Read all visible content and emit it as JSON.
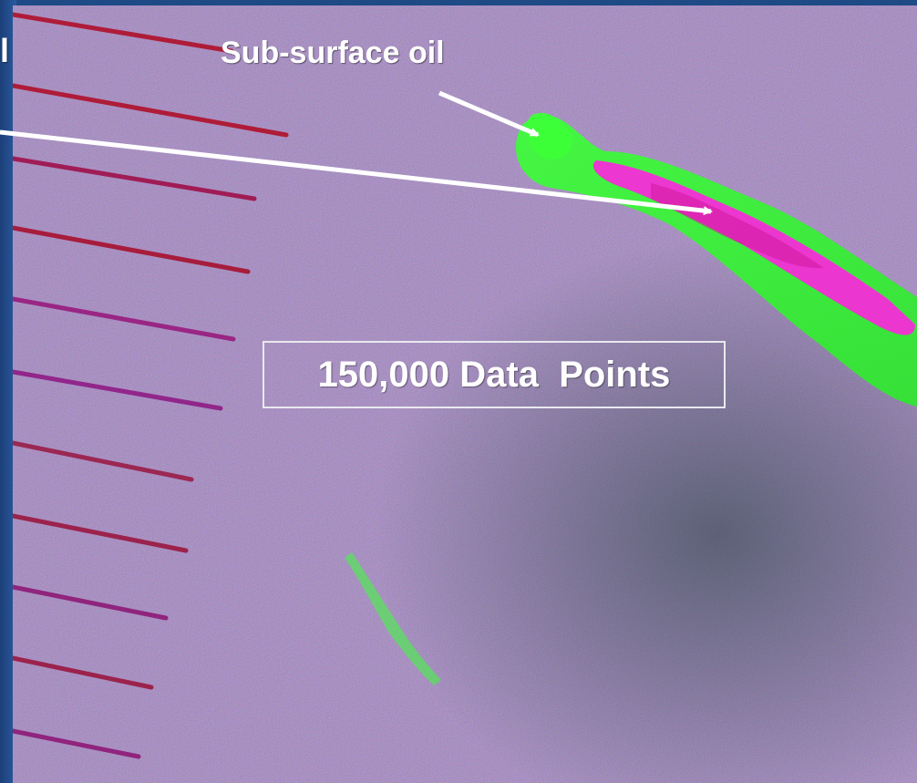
{
  "labels": {
    "left_partial": "l",
    "subsurface": "Sub-surface oil",
    "data_points": "150,000 Data  Points"
  },
  "image": {
    "description_icon": "sonar-image",
    "colors": {
      "background_magenta": "#9a5aa8",
      "background_blue": "#6a6ab8",
      "oil_green": "#39ff3a",
      "oil_magenta": "#ff22e0",
      "track_red": "#b0102a"
    }
  },
  "arrows": {
    "color": "#ffffff",
    "icon_names": [
      "arrow-to-surface-oil-icon",
      "arrow-to-subsurface-oil-icon"
    ]
  }
}
